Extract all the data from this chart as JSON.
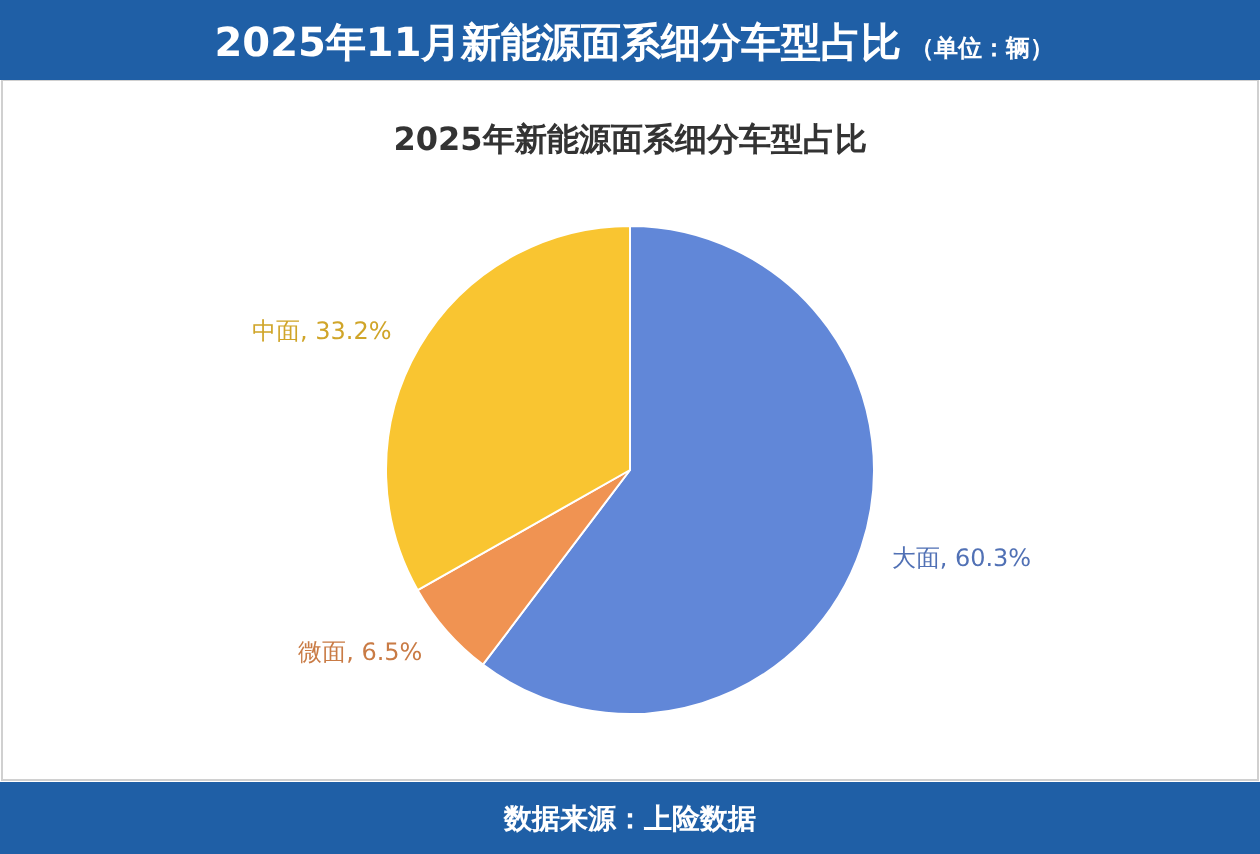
{
  "chart_data": {
    "type": "pie",
    "title": "2025年11月新能源面系细分车型占比",
    "subtitle": "2025年新能源面系细分车型占比",
    "categories": [
      "大面",
      "微面",
      "中面"
    ],
    "values": [
      60.3,
      6.5,
      33.2
    ],
    "colors": [
      "#6187d8",
      "#f09352",
      "#f9c531"
    ],
    "value_labels": [
      ", 60.3%",
      ", 6.5%",
      ", 33.2%"
    ],
    "annotations": [
      "（单位：辆）",
      "数据来源：上险数据"
    ]
  }
}
